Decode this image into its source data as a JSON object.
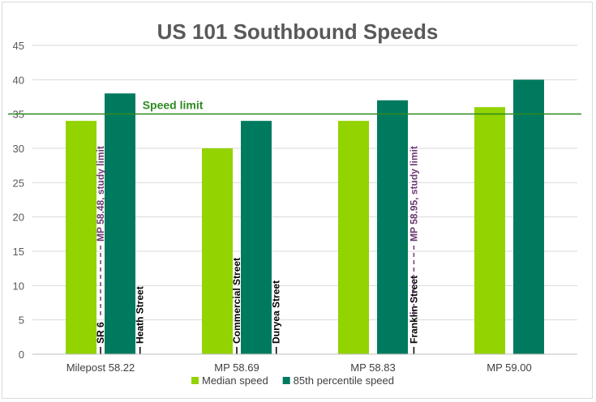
{
  "chart_data": {
    "type": "bar",
    "title": "US 101 Southbound Speeds",
    "xlabel": "",
    "ylabel": "",
    "ylim": [
      0,
      45
    ],
    "yticks": [
      0,
      5,
      10,
      15,
      20,
      25,
      30,
      35,
      40,
      45
    ],
    "grid": true,
    "legend_position": "bottom",
    "categories": [
      "Milepost 58.22",
      "MP 58.69",
      "MP 58.83",
      "MP 59.00"
    ],
    "series": [
      {
        "name": "Median speed",
        "color": "#92d300",
        "values": [
          34,
          30,
          34,
          36
        ]
      },
      {
        "name": "85th percentile speed",
        "color": "#007a5e",
        "values": [
          38,
          34,
          37,
          40
        ]
      }
    ],
    "reference_line": {
      "label": "Speed limit",
      "value": 35,
      "color": "#2e8b22"
    },
    "annotations": [
      {
        "text": "SR 6",
        "x": 0.5,
        "color": "#000000",
        "style": "solid"
      },
      {
        "text": "MP 58.48, study limit",
        "x": 0.5,
        "color": "#6b3a73",
        "style": "dashed"
      },
      {
        "text": "Heath Street",
        "x": 0.79,
        "color": "#000000",
        "style": "solid"
      },
      {
        "text": "Commercial Street",
        "x": 1.5,
        "color": "#000000",
        "style": "solid"
      },
      {
        "text": "Duryea Street",
        "x": 1.79,
        "color": "#000000",
        "style": "solid"
      },
      {
        "text": "Franklin Street",
        "x": 2.8,
        "color": "#000000",
        "style": "solid"
      },
      {
        "text": "MP 58.95, study limit",
        "x": 2.8,
        "color": "#6b3a73",
        "style": "dashed"
      }
    ]
  }
}
